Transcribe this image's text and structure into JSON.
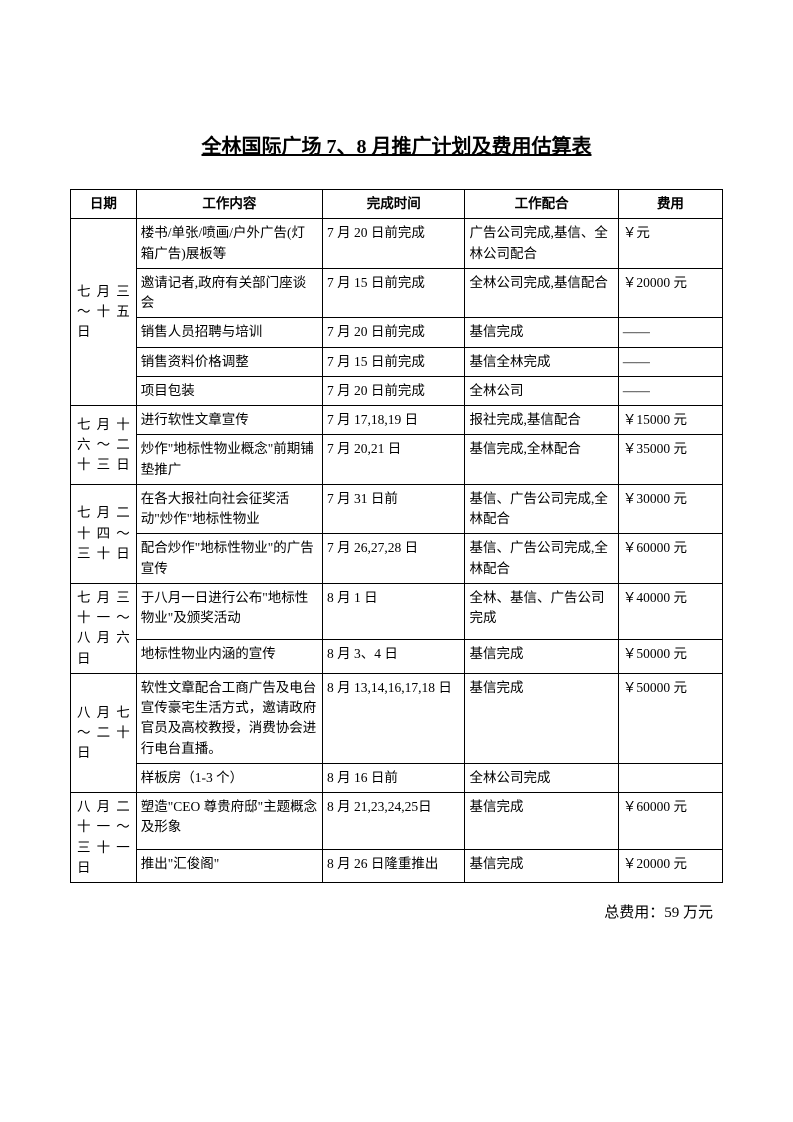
{
  "title": "全林国际广场 7、8 月推广计划及费用估算表",
  "headers": {
    "date": "日期",
    "work": "工作内容",
    "time": "完成时间",
    "coord": "工作配合",
    "cost": "费用"
  },
  "groups": [
    {
      "date": "七月三～十五日",
      "rows": [
        {
          "work": "楼书/单张/喷画/户外广告(灯箱广告)展板等",
          "time": "7 月 20 日前完成",
          "coord": "广告公司完成,基信、全林公司配合",
          "cost": "￥元"
        },
        {
          "work": "邀请记者,政府有关部门座谈会",
          "time": "7 月 15 日前完成",
          "coord": "全林公司完成,基信配合",
          "cost": "￥20000 元"
        },
        {
          "work": "销售人员招聘与培训",
          "time": "7 月 20 日前完成",
          "coord": "基信完成",
          "cost": "——"
        },
        {
          "work": "销售资料价格调整",
          "time": "7 月 15 日前完成",
          "coord": "基信全林完成",
          "cost": "——"
        },
        {
          "work": "项目包装",
          "time": "7 月 20 日前完成",
          "coord": "全林公司",
          "cost": "——"
        }
      ]
    },
    {
      "date": "七月十六～二十三日",
      "rows": [
        {
          "work": "进行软性文章宣传",
          "time": "7 月 17,18,19 日",
          "coord": "报社完成,基信配合",
          "cost": "￥15000 元"
        },
        {
          "work": "炒作\"地标性物业概念\"前期铺垫推广",
          "time": "7 月 20,21 日",
          "coord": "基信完成,全林配合",
          "cost": "￥35000 元"
        }
      ]
    },
    {
      "date": "七月二十四～三十日",
      "rows": [
        {
          "work": "在各大报社向社会征奖活动\"炒作\"地标性物业",
          "time": "7 月 31 日前",
          "coord": "基信、广告公司完成,全林配合",
          "cost": "￥30000 元"
        },
        {
          "work": "配合炒作\"地标性物业\"的广告宣传",
          "time": "7 月 26,27,28 日",
          "coord": "基信、广告公司完成,全林配合",
          "cost": "￥60000 元"
        }
      ]
    },
    {
      "date": "七月三十一～八月六日",
      "rows": [
        {
          "work": "于八月一日进行公布\"地标性物业\"及颁奖活动",
          "time": "8 月 1 日",
          "coord": "全林、基信、广告公司完成",
          "cost": "￥40000 元"
        },
        {
          "work": "地标性物业内涵的宣传",
          "time": "8 月 3、4 日",
          "coord": "基信完成",
          "cost": "￥50000 元"
        }
      ]
    },
    {
      "date": "八月七～二十日",
      "rows": [
        {
          "work": "软性文章配合工商广告及电台宣传豪宅生活方式，邀请政府官员及高校教授，消费协会进行电台直播。",
          "time": "8 月 13,14,16,17,18 日",
          "coord": "基信完成",
          "cost": "￥50000 元"
        },
        {
          "work": "样板房（1-3 个）",
          "time": "8 月 16 日前",
          "coord": "全林公司完成",
          "cost": ""
        }
      ]
    },
    {
      "date": "八月二十一～三十一日",
      "rows": [
        {
          "work": "塑造\"CEO 尊贵府邸\"主题概念及形象",
          "time": "8 月 21,23,24,25日",
          "coord": "基信完成",
          "cost": "￥60000 元"
        },
        {
          "work": "推出\"汇俊阁\"",
          "time": "8 月 26 日隆重推出",
          "coord": "基信完成",
          "cost": "￥20000 元"
        }
      ]
    }
  ],
  "total": "总费用：59 万元"
}
